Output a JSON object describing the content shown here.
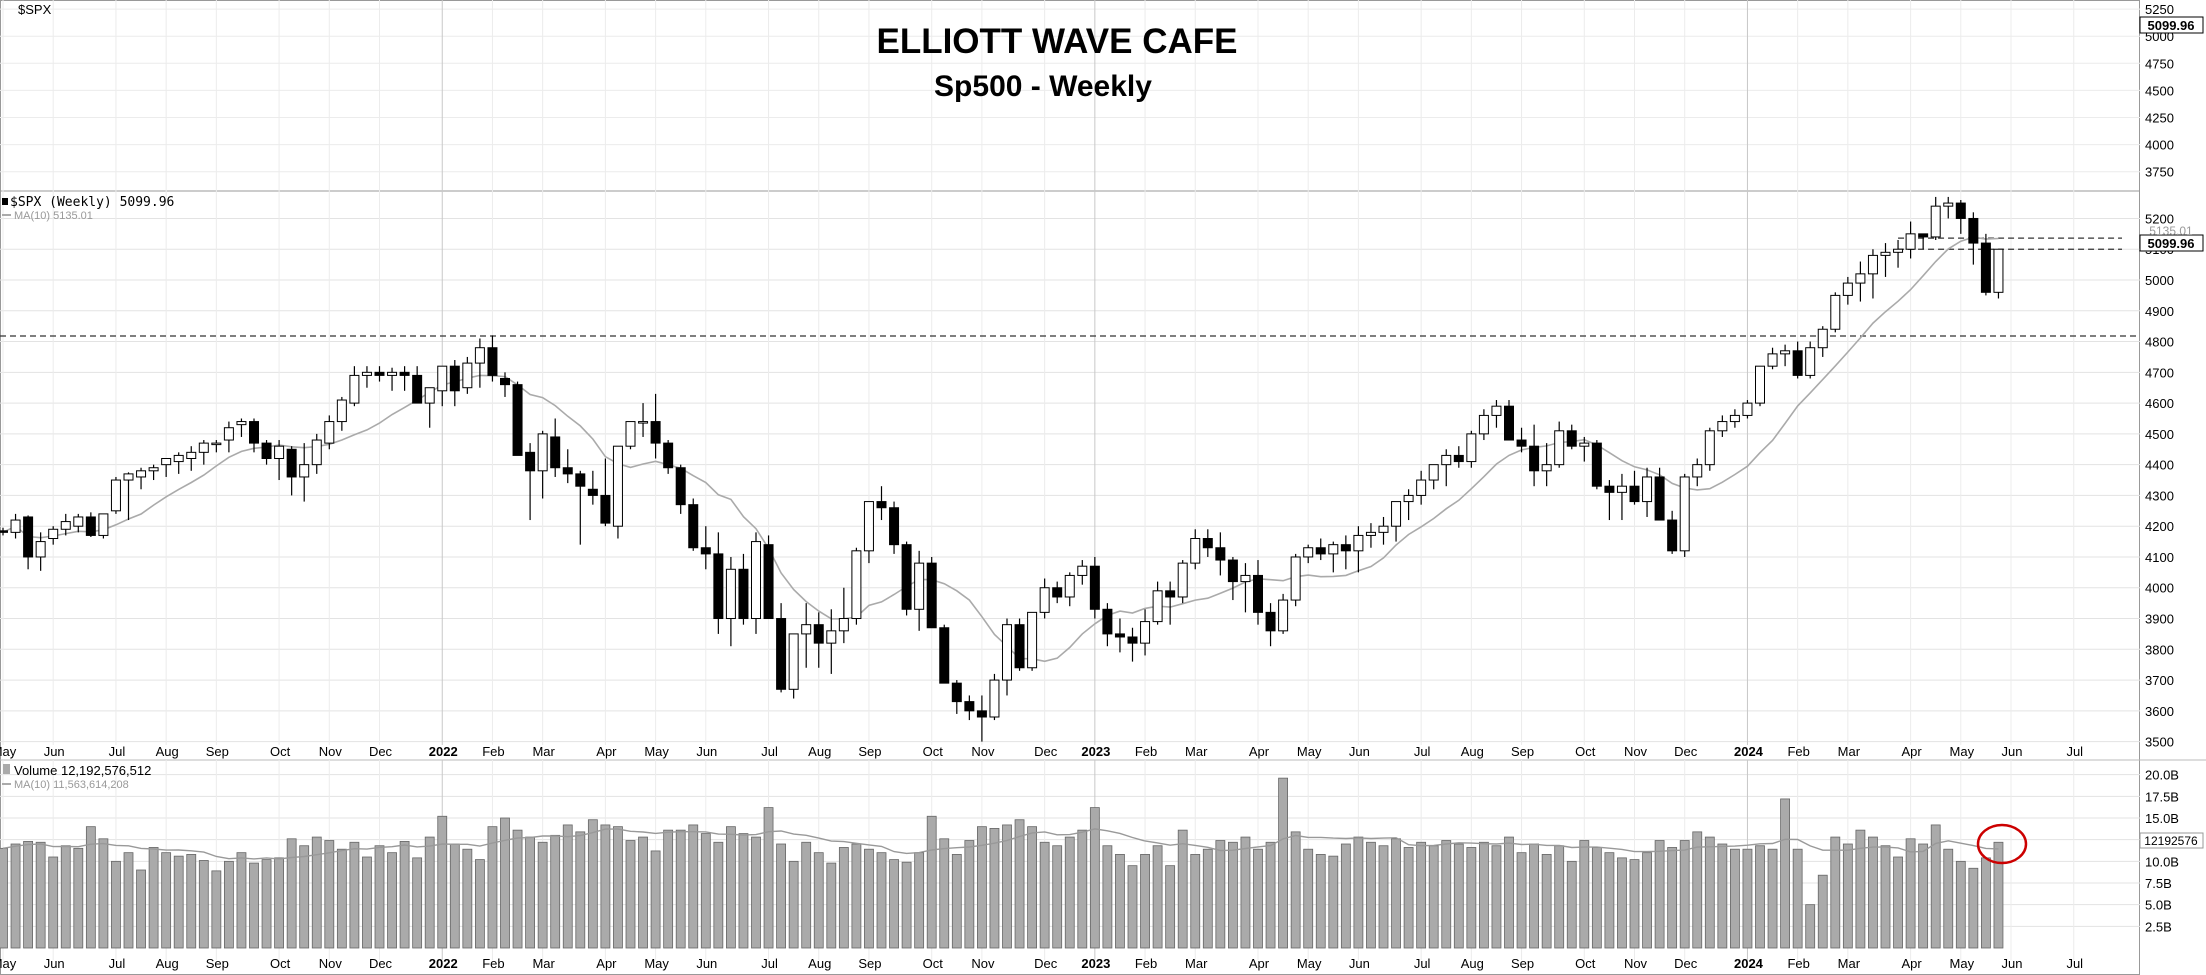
{
  "symbol_label": "$SPX",
  "title": "ELLIOTT WAVE CAFE",
  "subtitle": "Sp500 - Weekly",
  "price_panel": {
    "legend_main": "$SPX (Weekly) 5099.96",
    "legend_ma": "MA(10) 5135.01",
    "last_price_label": "5099.96",
    "ma_price_label": "5135.01",
    "y_ticks": [
      3500,
      3600,
      3700,
      3800,
      3900,
      4000,
      4100,
      4200,
      4300,
      4400,
      4500,
      4600,
      4700,
      4800,
      4900,
      5000,
      5100,
      5200
    ],
    "ylim": [
      3450,
      5260
    ],
    "upper_y_ticks": [
      3750,
      4000,
      4250,
      4500,
      4750,
      5000,
      5250
    ],
    "upper_ylim": [
      3600,
      5260
    ],
    "upper_last_label": "5099.96",
    "support_levels": [
      4818,
      5136,
      5100
    ]
  },
  "volume_panel": {
    "legend_main": "Volume 12,192,576,512",
    "legend_ma": "MA(10) 11,563,614,208",
    "last_volume_label": "12192576",
    "y_ticks": [
      "2.5B",
      "5.0B",
      "7.5B",
      "10.0B",
      "12.5B",
      "15.0B",
      "17.5B",
      "20.0B"
    ],
    "y_tick_values": [
      2.5,
      5.0,
      7.5,
      10.0,
      12.5,
      15.0,
      17.5,
      20.0
    ],
    "ylim": [
      0,
      21
    ]
  },
  "x_axis": {
    "labels": [
      "May",
      "Jun",
      "Jul",
      "Aug",
      "Sep",
      "Oct",
      "Nov",
      "Dec",
      "2022",
      "Feb",
      "Mar",
      "Apr",
      "May",
      "Jun",
      "Jul",
      "Aug",
      "Sep",
      "Oct",
      "Nov",
      "Dec",
      "2023",
      "Feb",
      "Mar",
      "Apr",
      "May",
      "Jun",
      "Jul",
      "Aug",
      "Sep",
      "Oct",
      "Nov",
      "Dec",
      "2024",
      "Feb",
      "Mar",
      "Apr",
      "May",
      "Jun",
      "Jul"
    ],
    "label_weeks": [
      0,
      4,
      9,
      13,
      17,
      22,
      26,
      30,
      35,
      39,
      43,
      48,
      52,
      56,
      61,
      65,
      69,
      74,
      78,
      83,
      87,
      91,
      95,
      100,
      104,
      108,
      113,
      117,
      121,
      126,
      130,
      134,
      139,
      143,
      147,
      152,
      156,
      160,
      165
    ],
    "bold_labels": [
      "2022",
      "2023",
      "2024"
    ]
  },
  "colors": {
    "up_fill": "#ffffff",
    "down_fill": "#000000",
    "ma_line": "#aaaaaa",
    "volume_bar": "#aaaaaa",
    "grid": "#dddddd",
    "highlight_circle": "#cc0000"
  },
  "chart_data": {
    "type": "candlestick",
    "title": "ELLIOTT WAVE CAFE",
    "subtitle": "Sp500 - Weekly",
    "series": [
      {
        "name": "$SPX (Weekly)",
        "last": 5099.96
      },
      {
        "name": "MA(10)",
        "last": 5135.01
      },
      {
        "name": "Volume",
        "last": 12192576512
      },
      {
        "name": "Volume MA(10)",
        "last": 11563614208
      }
    ],
    "candles_ohlcv": [
      [
        4185,
        4195,
        4170,
        4180,
        11.5
      ],
      [
        4180,
        4240,
        4160,
        4220,
        12.0
      ],
      [
        4230,
        4235,
        4060,
        4100,
        12.3
      ],
      [
        4100,
        4180,
        4055,
        4150,
        12.2
      ],
      [
        4160,
        4200,
        4140,
        4190,
        10.5
      ],
      [
        4190,
        4240,
        4170,
        4215,
        11.8
      ],
      [
        4200,
        4240,
        4180,
        4230,
        11.5
      ],
      [
        4230,
        4245,
        4165,
        4170,
        14.0
      ],
      [
        4170,
        4240,
        4160,
        4240,
        12.6
      ],
      [
        4250,
        4360,
        4240,
        4350,
        10.0
      ],
      [
        4350,
        4375,
        4220,
        4370,
        11.0
      ],
      [
        4360,
        4390,
        4320,
        4380,
        9.0
      ],
      [
        4380,
        4400,
        4350,
        4390,
        11.6
      ],
      [
        4400,
        4420,
        4360,
        4420,
        11.0
      ],
      [
        4410,
        4440,
        4370,
        4430,
        10.6
      ],
      [
        4420,
        4460,
        4380,
        4440,
        10.8
      ],
      [
        4440,
        4480,
        4400,
        4470,
        10.1
      ],
      [
        4470,
        4480,
        4440,
        4470,
        8.9
      ],
      [
        4480,
        4540,
        4440,
        4520,
        10.0
      ],
      [
        4530,
        4550,
        4490,
        4540,
        11.0
      ],
      [
        4540,
        4550,
        4440,
        4470,
        9.8
      ],
      [
        4470,
        4480,
        4400,
        4420,
        10.2
      ],
      [
        4420,
        4480,
        4350,
        4460,
        10.4
      ],
      [
        4450,
        4460,
        4300,
        4360,
        12.6
      ],
      [
        4360,
        4470,
        4280,
        4400,
        11.8
      ],
      [
        4400,
        4500,
        4370,
        4480,
        12.8
      ],
      [
        4470,
        4560,
        4450,
        4540,
        12.4
      ],
      [
        4540,
        4620,
        4510,
        4610,
        11.4
      ],
      [
        4600,
        4720,
        4590,
        4690,
        12.2
      ],
      [
        4690,
        4720,
        4650,
        4700,
        10.5
      ],
      [
        4700,
        4720,
        4670,
        4690,
        11.8
      ],
      [
        4690,
        4715,
        4640,
        4700,
        11.0
      ],
      [
        4700,
        4720,
        4640,
        4690,
        12.3
      ],
      [
        4690,
        4720,
        4600,
        4600,
        10.4
      ],
      [
        4600,
        4650,
        4520,
        4650,
        12.8
      ],
      [
        4640,
        4720,
        4590,
        4720,
        15.2
      ],
      [
        4720,
        4740,
        4590,
        4640,
        12.0
      ],
      [
        4650,
        4750,
        4630,
        4730,
        11.4
      ],
      [
        4730,
        4810,
        4650,
        4780,
        10.2
      ],
      [
        4780,
        4820,
        4670,
        4690,
        14.0
      ],
      [
        4680,
        4700,
        4620,
        4660,
        15.0
      ],
      [
        4660,
        4670,
        4430,
        4430,
        13.6
      ],
      [
        4440,
        4470,
        4220,
        4380,
        12.8
      ],
      [
        4380,
        4510,
        4290,
        4500,
        12.2
      ],
      [
        4490,
        4550,
        4360,
        4390,
        13.0
      ],
      [
        4390,
        4450,
        4340,
        4370,
        14.2
      ],
      [
        4370,
        4380,
        4140,
        4330,
        13.4
      ],
      [
        4320,
        4380,
        4270,
        4300,
        14.8
      ],
      [
        4300,
        4420,
        4200,
        4210,
        14.2
      ],
      [
        4200,
        4420,
        4160,
        4460,
        14.0
      ],
      [
        4460,
        4530,
        4450,
        4540,
        12.4
      ],
      [
        4540,
        4600,
        4490,
        4540,
        12.8
      ],
      [
        4540,
        4630,
        4420,
        4470,
        11.2
      ],
      [
        4470,
        4480,
        4370,
        4390,
        13.6
      ],
      [
        4390,
        4400,
        4240,
        4270,
        13.6
      ],
      [
        4270,
        4290,
        4120,
        4130,
        14.2
      ],
      [
        4130,
        4200,
        4060,
        4110,
        13.2
      ],
      [
        4110,
        4180,
        3850,
        3900,
        12.2
      ],
      [
        3900,
        4100,
        3810,
        4060,
        14.0
      ],
      [
        4060,
        4110,
        3880,
        3900,
        13.2
      ],
      [
        3900,
        4180,
        3850,
        4150,
        12.8
      ],
      [
        4140,
        4170,
        3900,
        3900,
        16.2
      ],
      [
        3900,
        3950,
        3660,
        3670,
        12.0
      ],
      [
        3670,
        3850,
        3640,
        3850,
        10.0
      ],
      [
        3850,
        3950,
        3740,
        3880,
        12.2
      ],
      [
        3880,
        3920,
        3740,
        3820,
        11.0
      ],
      [
        3820,
        3930,
        3720,
        3860,
        9.8
      ],
      [
        3860,
        4000,
        3820,
        3900,
        11.6
      ],
      [
        3900,
        4130,
        3880,
        4120,
        12.0
      ],
      [
        4120,
        4280,
        4080,
        4280,
        11.4
      ],
      [
        4280,
        4330,
        4220,
        4260,
        11.0
      ],
      [
        4260,
        4280,
        4110,
        4140,
        10.2
      ],
      [
        4140,
        4150,
        3910,
        3930,
        9.9
      ],
      [
        3930,
        4120,
        3860,
        4080,
        11.0
      ],
      [
        4080,
        4100,
        3870,
        3870,
        15.2
      ],
      [
        3870,
        3880,
        3700,
        3690,
        12.6
      ],
      [
        3690,
        3700,
        3590,
        3630,
        10.8
      ],
      [
        3630,
        3650,
        3570,
        3600,
        12.4
      ],
      [
        3600,
        3650,
        3500,
        3580,
        14.0
      ],
      [
        3580,
        3720,
        3570,
        3700,
        13.8
      ],
      [
        3700,
        3900,
        3650,
        3880,
        14.2
      ],
      [
        3880,
        3900,
        3730,
        3740,
        14.8
      ],
      [
        3740,
        3920,
        3730,
        3920,
        14.0
      ],
      [
        3920,
        4030,
        3900,
        4000,
        12.2
      ],
      [
        4000,
        4020,
        3950,
        3970,
        11.8
      ],
      [
        3970,
        4050,
        3940,
        4040,
        12.8
      ],
      [
        4040,
        4090,
        4010,
        4070,
        13.6
      ],
      [
        4070,
        4100,
        3900,
        3930,
        16.2
      ],
      [
        3930,
        3950,
        3810,
        3850,
        11.8
      ],
      [
        3850,
        3900,
        3790,
        3840,
        10.8
      ],
      [
        3840,
        3870,
        3760,
        3820,
        9.5
      ],
      [
        3820,
        3930,
        3780,
        3890,
        10.8
      ],
      [
        3890,
        4020,
        3880,
        3990,
        11.8
      ],
      [
        3990,
        4020,
        3880,
        3970,
        9.5
      ],
      [
        3970,
        4090,
        3950,
        4080,
        13.6
      ],
      [
        4080,
        4190,
        4060,
        4160,
        10.8
      ],
      [
        4160,
        4190,
        4100,
        4130,
        11.4
      ],
      [
        4130,
        4180,
        4040,
        4090,
        12.4
      ],
      [
        4090,
        4100,
        3960,
        4020,
        12.2
      ],
      [
        4020,
        4080,
        3920,
        4040,
        12.8
      ],
      [
        4040,
        4090,
        3880,
        3920,
        11.4
      ],
      [
        3920,
        3950,
        3810,
        3860,
        12.2
      ],
      [
        3860,
        3980,
        3850,
        3960,
        19.6
      ],
      [
        3960,
        4110,
        3940,
        4100,
        13.4
      ],
      [
        4100,
        4140,
        4080,
        4130,
        11.4
      ],
      [
        4130,
        4160,
        4090,
        4110,
        10.8
      ],
      [
        4110,
        4150,
        4050,
        4140,
        10.6
      ],
      [
        4140,
        4170,
        4060,
        4120,
        12.0
      ],
      [
        4120,
        4200,
        4050,
        4170,
        12.8
      ],
      [
        4170,
        4210,
        4130,
        4180,
        12.2
      ],
      [
        4180,
        4230,
        4140,
        4200,
        11.8
      ],
      [
        4200,
        4280,
        4150,
        4280,
        12.6
      ],
      [
        4280,
        4320,
        4220,
        4300,
        11.6
      ],
      [
        4300,
        4380,
        4270,
        4350,
        12.2
      ],
      [
        4350,
        4400,
        4320,
        4400,
        11.8
      ],
      [
        4400,
        4450,
        4330,
        4430,
        12.4
      ],
      [
        4430,
        4460,
        4390,
        4410,
        12.0
      ],
      [
        4410,
        4510,
        4390,
        4500,
        11.6
      ],
      [
        4500,
        4580,
        4480,
        4560,
        12.2
      ],
      [
        4560,
        4610,
        4520,
        4590,
        11.8
      ],
      [
        4590,
        4610,
        4480,
        4480,
        12.8
      ],
      [
        4480,
        4520,
        4440,
        4460,
        11.0
      ],
      [
        4460,
        4530,
        4330,
        4380,
        12.0
      ],
      [
        4380,
        4470,
        4330,
        4400,
        10.8
      ],
      [
        4400,
        4540,
        4390,
        4510,
        11.8
      ],
      [
        4510,
        4530,
        4450,
        4460,
        10.0
      ],
      [
        4460,
        4490,
        4410,
        4470,
        12.4
      ],
      [
        4470,
        4480,
        4320,
        4330,
        11.6
      ],
      [
        4330,
        4350,
        4220,
        4310,
        11.0
      ],
      [
        4310,
        4370,
        4220,
        4330,
        10.4
      ],
      [
        4330,
        4380,
        4270,
        4280,
        10.2
      ],
      [
        4280,
        4390,
        4230,
        4360,
        11.0
      ],
      [
        4360,
        4390,
        4260,
        4220,
        12.4
      ],
      [
        4220,
        4250,
        4110,
        4120,
        11.6
      ],
      [
        4120,
        4370,
        4100,
        4360,
        12.4
      ],
      [
        4360,
        4420,
        4330,
        4400,
        13.4
      ],
      [
        4400,
        4520,
        4380,
        4510,
        12.8
      ],
      [
        4510,
        4560,
        4490,
        4540,
        12.0
      ],
      [
        4540,
        4580,
        4520,
        4560,
        11.4
      ],
      [
        4560,
        4610,
        4550,
        4600,
        11.4
      ],
      [
        4600,
        4720,
        4590,
        4720,
        11.8
      ],
      [
        4720,
        4780,
        4710,
        4760,
        11.4
      ],
      [
        4760,
        4790,
        4720,
        4770,
        17.2
      ],
      [
        4770,
        4800,
        4680,
        4690,
        11.4
      ],
      [
        4690,
        4800,
        4680,
        4780,
        5.0
      ],
      [
        4780,
        4850,
        4750,
        4840,
        8.4
      ],
      [
        4840,
        4960,
        4830,
        4950,
        12.8
      ],
      [
        4950,
        5010,
        4920,
        4990,
        12.0
      ],
      [
        4990,
        5060,
        4930,
        5020,
        13.6
      ],
      [
        5020,
        5100,
        4940,
        5080,
        12.8
      ],
      [
        5080,
        5120,
        5010,
        5090,
        11.8
      ],
      [
        5090,
        5130,
        5040,
        5100,
        10.5
      ],
      [
        5100,
        5190,
        5070,
        5150,
        12.6
      ],
      [
        5150,
        5150,
        5100,
        5140,
        12.0
      ],
      [
        5140,
        5270,
        5130,
        5240,
        14.2
      ],
      [
        5240,
        5270,
        5200,
        5250,
        11.4
      ],
      [
        5250,
        5260,
        5150,
        5200,
        10.0
      ],
      [
        5200,
        5220,
        5050,
        5120,
        9.2
      ],
      [
        5120,
        5150,
        4950,
        4960,
        10.4
      ],
      [
        4960,
        5100,
        4940,
        5100,
        12.2
      ]
    ]
  }
}
